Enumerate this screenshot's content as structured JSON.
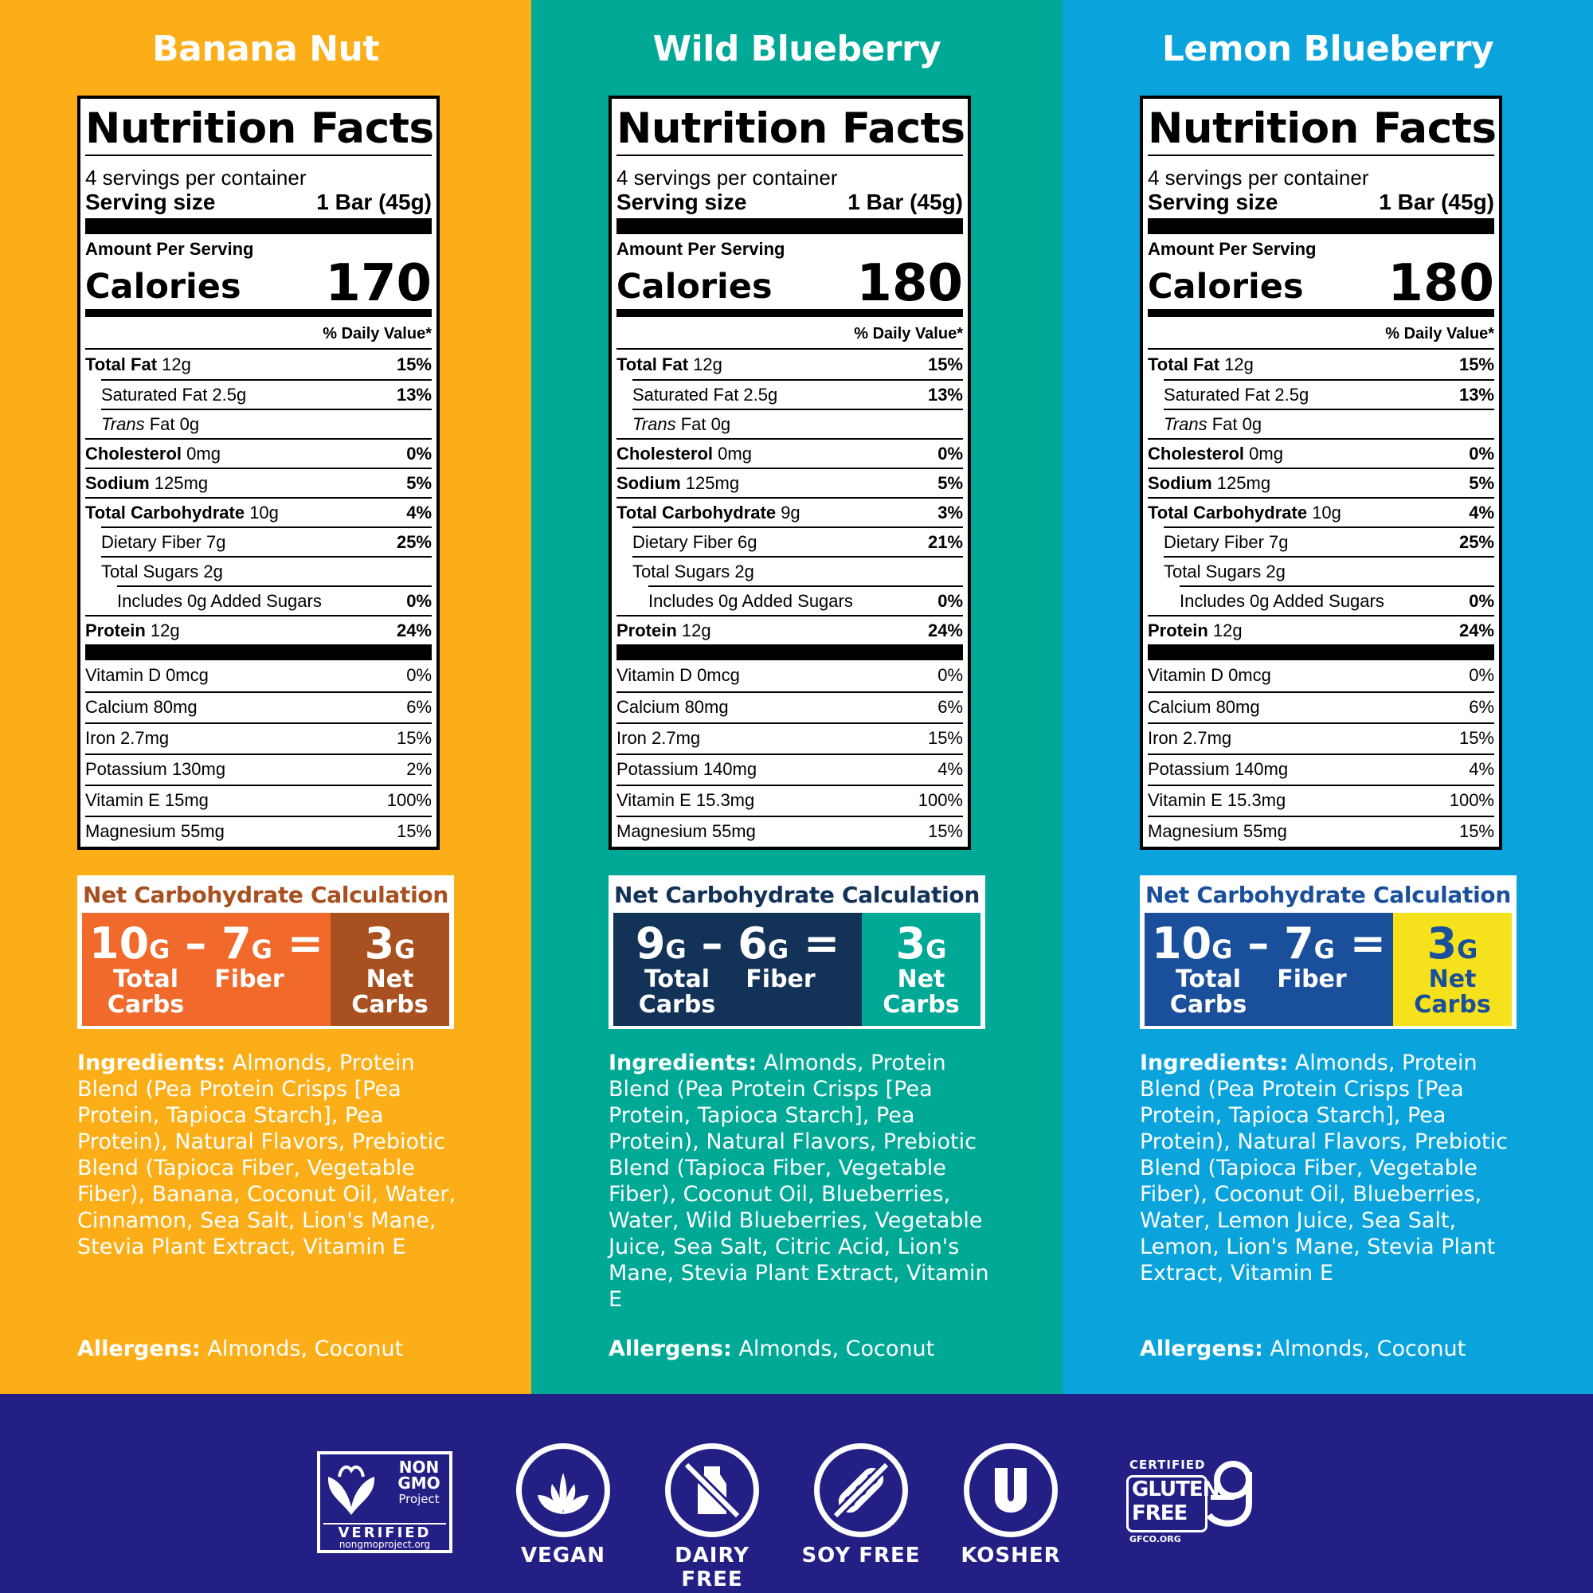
{
  "products": [
    {
      "title": "Banana Nut",
      "bg": "#fbae17",
      "nc_title_color": "#a8501f",
      "nc_left_color": "#f1692b",
      "nc_right_color": "#a8501f",
      "nc_right_text": "#ffffff",
      "nf": {
        "title": "Nutrition Facts",
        "servings": "4 servings per container",
        "serving_size_label": "Serving size",
        "serving_size_value": "1 Bar (45g)",
        "amount_per_serving": "Amount Per Serving",
        "calories_label": "Calories",
        "calories": "170",
        "dv_header": "% Daily Value*",
        "nutrients": [
          {
            "name": "Total Fat",
            "amount": "12g",
            "pct": "15%"
          },
          {
            "name": "Saturated Fat 2.5g",
            "amount": "",
            "pct": "13%"
          },
          {
            "name": "Trans",
            "amount": "Fat 0g",
            "pct": ""
          },
          {
            "name": "Cholesterol",
            "amount": "0mg",
            "pct": "0%"
          },
          {
            "name": "Sodium",
            "amount": "125mg",
            "pct": "5%"
          },
          {
            "name": "Total Carbohydrate",
            "amount": "10g",
            "pct": "4%"
          },
          {
            "name": "Dietary Fiber 7g",
            "amount": "",
            "pct": "25%"
          },
          {
            "name": "Total Sugars 2g",
            "amount": "",
            "pct": ""
          },
          {
            "name": "Includes 0g Added Sugars",
            "amount": "",
            "pct": "0%"
          },
          {
            "name": "Protein",
            "amount": "12g",
            "pct": "24%"
          }
        ],
        "vitamins": [
          {
            "name": "Vitamin D 0mcg",
            "pct": "0%"
          },
          {
            "name": "Calcium 80mg",
            "pct": "6%"
          },
          {
            "name": "Iron 2.7mg",
            "pct": "15%"
          },
          {
            "name": "Potassium 130mg",
            "pct": "2%"
          },
          {
            "name": "Vitamin E 15mg",
            "pct": "100%"
          },
          {
            "name": "Magnesium 55mg",
            "pct": "15%"
          }
        ]
      },
      "net_carb": {
        "title": "Net Carbohydrate Calculation",
        "total": "10",
        "fiber": "7",
        "net": "3",
        "unit": "G",
        "minus": "–",
        "equals": "=",
        "total_label_1": "Total",
        "total_label_2": "Carbs",
        "fiber_label": "Fiber",
        "net_label_1": "Net",
        "net_label_2": "Carbs"
      },
      "ingredients_label": "Ingredients:",
      "ingredients": "Almonds, Protein Blend (Pea Protein Crisps [Pea Protein, Tapioca Starch], Pea Protein), Natural Flavors, Prebiotic Blend (Tapioca Fiber, Vegetable Fiber), Banana, Coconut Oil, Water, Cinnamon, Sea Salt, Lion's Mane, Stevia Plant Extract, Vitamin E",
      "allergens_label": "Allergens:",
      "allergens": "Almonds, Coconut"
    },
    {
      "title": "Wild Blueberry",
      "bg": "#00a896",
      "nc_title_color": "#123258",
      "nc_left_color": "#123258",
      "nc_right_color": "#00a896",
      "nc_right_text": "#ffffff",
      "nf": {
        "title": "Nutrition Facts",
        "servings": "4 servings per container",
        "serving_size_label": "Serving size",
        "serving_size_value": "1 Bar (45g)",
        "amount_per_serving": "Amount Per Serving",
        "calories_label": "Calories",
        "calories": "180",
        "dv_header": "% Daily Value*",
        "nutrients": [
          {
            "name": "Total Fat",
            "amount": "12g",
            "pct": "15%"
          },
          {
            "name": "Saturated Fat 2.5g",
            "amount": "",
            "pct": "13%"
          },
          {
            "name": "Trans",
            "amount": "Fat 0g",
            "pct": ""
          },
          {
            "name": "Cholesterol",
            "amount": "0mg",
            "pct": "0%"
          },
          {
            "name": "Sodium",
            "amount": "125mg",
            "pct": "5%"
          },
          {
            "name": "Total Carbohydrate",
            "amount": "9g",
            "pct": "3%"
          },
          {
            "name": "Dietary Fiber 6g",
            "amount": "",
            "pct": "21%"
          },
          {
            "name": "Total Sugars 2g",
            "amount": "",
            "pct": ""
          },
          {
            "name": "Includes 0g Added Sugars",
            "amount": "",
            "pct": "0%"
          },
          {
            "name": "Protein",
            "amount": "12g",
            "pct": "24%"
          }
        ],
        "vitamins": [
          {
            "name": "Vitamin D 0mcg",
            "pct": "0%"
          },
          {
            "name": "Calcium 80mg",
            "pct": "6%"
          },
          {
            "name": "Iron 2.7mg",
            "pct": "15%"
          },
          {
            "name": "Potassium 140mg",
            "pct": "4%"
          },
          {
            "name": "Vitamin E 15.3mg",
            "pct": "100%"
          },
          {
            "name": "Magnesium 55mg",
            "pct": "15%"
          }
        ]
      },
      "net_carb": {
        "title": "Net Carbohydrate Calculation",
        "total": "9",
        "fiber": "6",
        "net": "3",
        "unit": "G",
        "minus": "–",
        "equals": "=",
        "total_label_1": "Total",
        "total_label_2": "Carbs",
        "fiber_label": "Fiber",
        "net_label_1": "Net",
        "net_label_2": "Carbs"
      },
      "ingredients_label": "Ingredients:",
      "ingredients": "Almonds, Protein Blend (Pea Protein Crisps [Pea Protein, Tapioca Starch], Pea Protein), Natural Flavors, Prebiotic Blend (Tapioca Fiber, Vegetable Fiber), Coconut Oil, Blueberries, Water, Wild Blueberries, Vegetable Juice, Sea Salt, Citric Acid, Lion's Mane, Stevia Plant Extract, Vitamin E",
      "allergens_label": "Allergens:",
      "allergens": "Almonds, Coconut"
    },
    {
      "title": "Lemon Blueberry",
      "bg": "#0aa3dc",
      "nc_title_color": "#1a4f9c",
      "nc_left_color": "#1a4f9c",
      "nc_right_color": "#f5e11c",
      "nc_right_text": "#1a4f9c",
      "nf": {
        "title": "Nutrition Facts",
        "servings": "4 servings per container",
        "serving_size_label": "Serving size",
        "serving_size_value": "1 Bar (45g)",
        "amount_per_serving": "Amount Per Serving",
        "calories_label": "Calories",
        "calories": "180",
        "dv_header": "% Daily Value*",
        "nutrients": [
          {
            "name": "Total Fat",
            "amount": "12g",
            "pct": "15%"
          },
          {
            "name": "Saturated Fat 2.5g",
            "amount": "",
            "pct": "13%"
          },
          {
            "name": "Trans",
            "amount": "Fat 0g",
            "pct": ""
          },
          {
            "name": "Cholesterol",
            "amount": "0mg",
            "pct": "0%"
          },
          {
            "name": "Sodium",
            "amount": "125mg",
            "pct": "5%"
          },
          {
            "name": "Total Carbohydrate",
            "amount": "10g",
            "pct": "4%"
          },
          {
            "name": "Dietary Fiber 7g",
            "amount": "",
            "pct": "25%"
          },
          {
            "name": "Total Sugars 2g",
            "amount": "",
            "pct": ""
          },
          {
            "name": "Includes 0g Added Sugars",
            "amount": "",
            "pct": "0%"
          },
          {
            "name": "Protein",
            "amount": "12g",
            "pct": "24%"
          }
        ],
        "vitamins": [
          {
            "name": "Vitamin D 0mcg",
            "pct": "0%"
          },
          {
            "name": "Calcium 80mg",
            "pct": "6%"
          },
          {
            "name": "Iron 2.7mg",
            "pct": "15%"
          },
          {
            "name": "Potassium 140mg",
            "pct": "4%"
          },
          {
            "name": "Vitamin E 15.3mg",
            "pct": "100%"
          },
          {
            "name": "Magnesium 55mg",
            "pct": "15%"
          }
        ]
      },
      "net_carb": {
        "title": "Net Carbohydrate Calculation",
        "total": "10",
        "fiber": "7",
        "net": "3",
        "unit": "G",
        "minus": "–",
        "equals": "=",
        "total_label_1": "Total",
        "total_label_2": "Carbs",
        "fiber_label": "Fiber",
        "net_label_1": "Net",
        "net_label_2": "Carbs"
      },
      "ingredients_label": "Ingredients:",
      "ingredients": "Almonds, Protein Blend (Pea Protein Crisps [Pea Protein, Tapioca Starch], Pea Protein), Natural Flavors, Prebiotic Blend (Tapioca Fiber, Vegetable Fiber), Coconut Oil, Blueberries, Water, Lemon Juice, Sea Salt, Lemon, Lion's Mane, Stevia Plant Extract, Vitamin E",
      "allergens_label": "Allergens:",
      "allergens": "Almonds, Coconut"
    }
  ],
  "footer": {
    "bg": "#241f85",
    "nongmo": {
      "line1": "NON",
      "line2": "GMO",
      "line3": "Project",
      "verified": "VERIFIED",
      "url": "nongmoproject.org",
      "icon": "butterfly-icon"
    },
    "badges": [
      {
        "label": "VEGAN",
        "icon": "leaf-icon"
      },
      {
        "label": "DAIRY FREE",
        "icon": "milk-bottle-crossed-icon"
      },
      {
        "label": "SOY FREE",
        "icon": "soybean-crossed-icon"
      },
      {
        "label": "KOSHER",
        "icon": "kosher-u-icon"
      }
    ],
    "gluten": {
      "certified": "CERTIFIED",
      "line1": "GLUTEN",
      "line2": "FREE",
      "url": "GFCO.ORG",
      "icon": "gfco-g-icon"
    }
  }
}
